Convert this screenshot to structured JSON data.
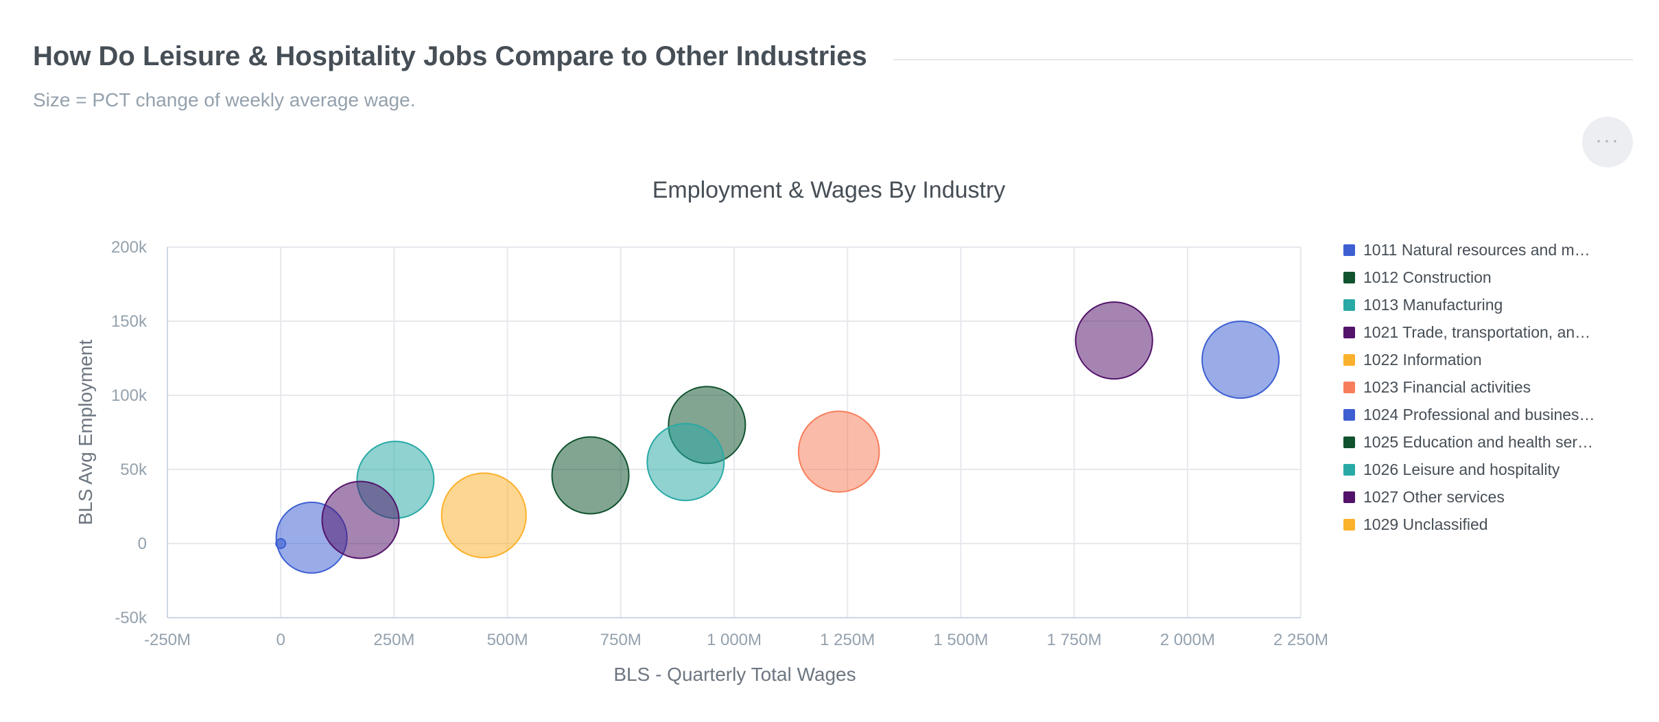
{
  "header": {
    "title": "How Do Leisure & Hospitality Jobs Compare to Other Industries",
    "subtitle": "Size = PCT change of weekly average wage."
  },
  "menu": {
    "icon": "more-options-icon",
    "label": "···"
  },
  "chart_data": {
    "type": "scatter",
    "variant": "bubble",
    "title": "Employment & Wages By Industry",
    "xlabel": "BLS - Quarterly Total Wages",
    "ylabel": "BLS Avg Employment",
    "xlim": [
      -250000000,
      2250000000
    ],
    "ylim": [
      -50000,
      200000
    ],
    "xticks": [
      -250000000,
      0,
      250000000,
      500000000,
      750000000,
      1000000000,
      1250000000,
      1500000000,
      1750000000,
      2000000000,
      2250000000
    ],
    "xtick_labels": [
      "-250M",
      "0",
      "250M",
      "500M",
      "750M",
      "1 000M",
      "1 250M",
      "1 500M",
      "1 750M",
      "2 000M",
      "2 250M"
    ],
    "yticks": [
      200000,
      150000,
      100000,
      50000,
      0,
      -50000
    ],
    "ytick_labels": [
      "200k",
      "150k",
      "100k",
      "50k",
      "0",
      "-50k"
    ],
    "grid": true,
    "legend_position": "right",
    "series": [
      {
        "name": "1011 Natural resources and m…",
        "color": "#3d5fd2",
        "points": [
          {
            "x": 0,
            "y": 0,
            "size": 0.08
          }
        ]
      },
      {
        "name": "1012 Construction",
        "color": "#10532e",
        "points": [
          {
            "x": 683000000,
            "y": 46000,
            "size": 1.0
          }
        ]
      },
      {
        "name": "1013 Manufacturing",
        "color": "#28a9a5",
        "points": [
          {
            "x": 253000000,
            "y": 43000,
            "size": 1.0
          }
        ]
      },
      {
        "name": "1021 Trade, transportation, an…",
        "color": "#53136a",
        "points": [
          {
            "x": 1838000000,
            "y": 137000,
            "size": 1.0
          }
        ]
      },
      {
        "name": "1022 Information",
        "color": "#fbb12c",
        "points": [
          {
            "x": 448000000,
            "y": 19000,
            "size": 1.1
          }
        ]
      },
      {
        "name": "1023 Financial activities",
        "color": "#f87d5b",
        "points": [
          {
            "x": 1231000000,
            "y": 62000,
            "size": 1.05
          }
        ]
      },
      {
        "name": "1024 Professional and busines…",
        "color": "#3d5fd2",
        "points": [
          {
            "x": 2117000000,
            "y": 124000,
            "size": 1.0
          },
          {
            "x": 68000000,
            "y": 4000,
            "size": 0.92
          }
        ]
      },
      {
        "name": "1025 Education and health ser…",
        "color": "#10532e",
        "points": [
          {
            "x": 940000000,
            "y": 80000,
            "size": 1.0
          }
        ]
      },
      {
        "name": "1026 Leisure and hospitality",
        "color": "#28a9a5",
        "points": [
          {
            "x": 893000000,
            "y": 55000,
            "size": 1.0
          }
        ]
      },
      {
        "name": "1027 Other services",
        "color": "#53136a",
        "points": [
          {
            "x": 176000000,
            "y": 16000,
            "size": 1.0
          }
        ]
      },
      {
        "name": "1029 Unclassified",
        "color": "#fbb12c",
        "points": []
      }
    ]
  }
}
